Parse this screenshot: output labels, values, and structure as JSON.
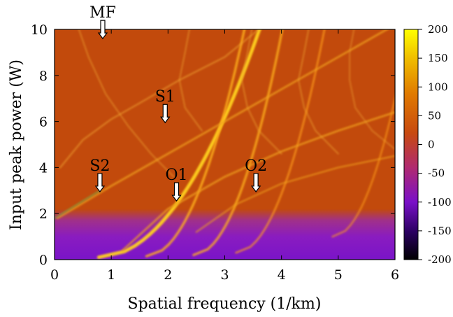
{
  "chart_data": {
    "type": "heatmap",
    "xlabel": "Spatial frequency (1/km)",
    "ylabel": "Input peak power (W)",
    "xlim": [
      0,
      6
    ],
    "ylim": [
      0,
      10
    ],
    "xticks": [
      "0",
      "1",
      "2",
      "3",
      "4",
      "5",
      "6"
    ],
    "yticks": [
      "0",
      "2",
      "4",
      "6",
      "8",
      "10"
    ],
    "colorbar": {
      "range": [
        -200,
        200
      ],
      "ticks": [
        "200",
        "150",
        "100",
        "50",
        "0",
        "-50",
        "-100",
        "-150",
        "-200"
      ],
      "colors": [
        "#000000",
        "#2a0060",
        "#7a10c8",
        "#b02a70",
        "#c84a10",
        "#e07a00",
        "#f0c000",
        "#ffff00"
      ]
    },
    "background_color": "#c24a0c",
    "low_power_band_color": "#8a1cc0",
    "annotations": [
      {
        "label": "MF",
        "x": 0.85,
        "y": 9.6
      },
      {
        "label": "S1",
        "x": 1.95,
        "y": 5.95
      },
      {
        "label": "S2",
        "x": 0.8,
        "y": 2.95
      },
      {
        "label": "O1",
        "x": 2.15,
        "y": 2.55
      },
      {
        "label": "O2",
        "x": 3.55,
        "y": 2.95
      }
    ]
  }
}
